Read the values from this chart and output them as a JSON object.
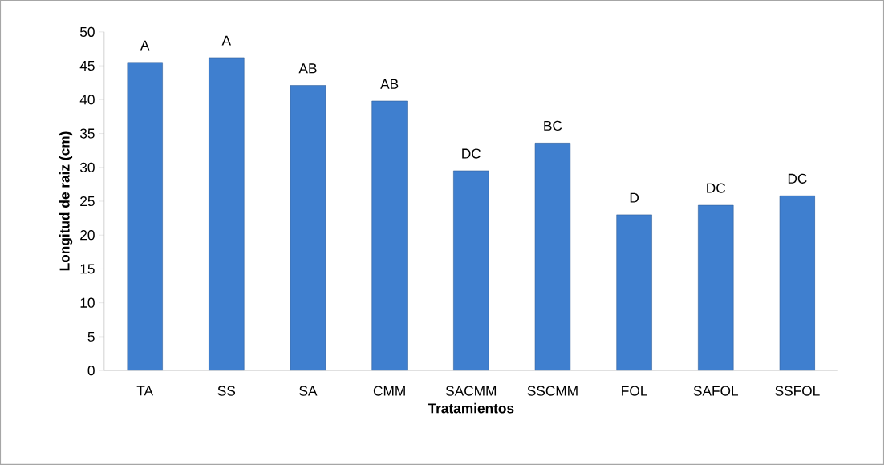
{
  "chart_data": {
    "type": "bar",
    "xlabel": "Tratamientos",
    "ylabel": "Longitud de raiz (cm)",
    "categories": [
      "TA",
      "SS",
      "SA",
      "CMM",
      "SACMM",
      "SSCMM",
      "FOL",
      "SAFOL",
      "SSFOL"
    ],
    "values": [
      45.5,
      46.2,
      42.1,
      39.8,
      29.5,
      33.6,
      23.0,
      24.4,
      25.8
    ],
    "color": "#3f7fcf",
    "ylim": [
      0,
      50
    ],
    "yticks": [
      0,
      5,
      10,
      15,
      20,
      25,
      30,
      35,
      40,
      45,
      50
    ],
    "grid": false,
    "annotations": [
      {
        "text": "A",
        "x": "TA",
        "y": 45.5
      },
      {
        "text": "A",
        "x": "SS",
        "y": 46.2
      },
      {
        "text": "AB",
        "x": "SA",
        "y": 42.1
      },
      {
        "text": "AB",
        "x": "CMM",
        "y": 39.8
      },
      {
        "text": "DC",
        "x": "SACMM",
        "y": 29.5
      },
      {
        "text": "BC",
        "x": "SSCMM",
        "y": 33.6
      },
      {
        "text": "D",
        "x": "FOL",
        "y": 23.0
      },
      {
        "text": "DC",
        "x": "SAFOL",
        "y": 24.4
      },
      {
        "text": "DC",
        "x": "SSFOL",
        "y": 25.8
      }
    ]
  }
}
